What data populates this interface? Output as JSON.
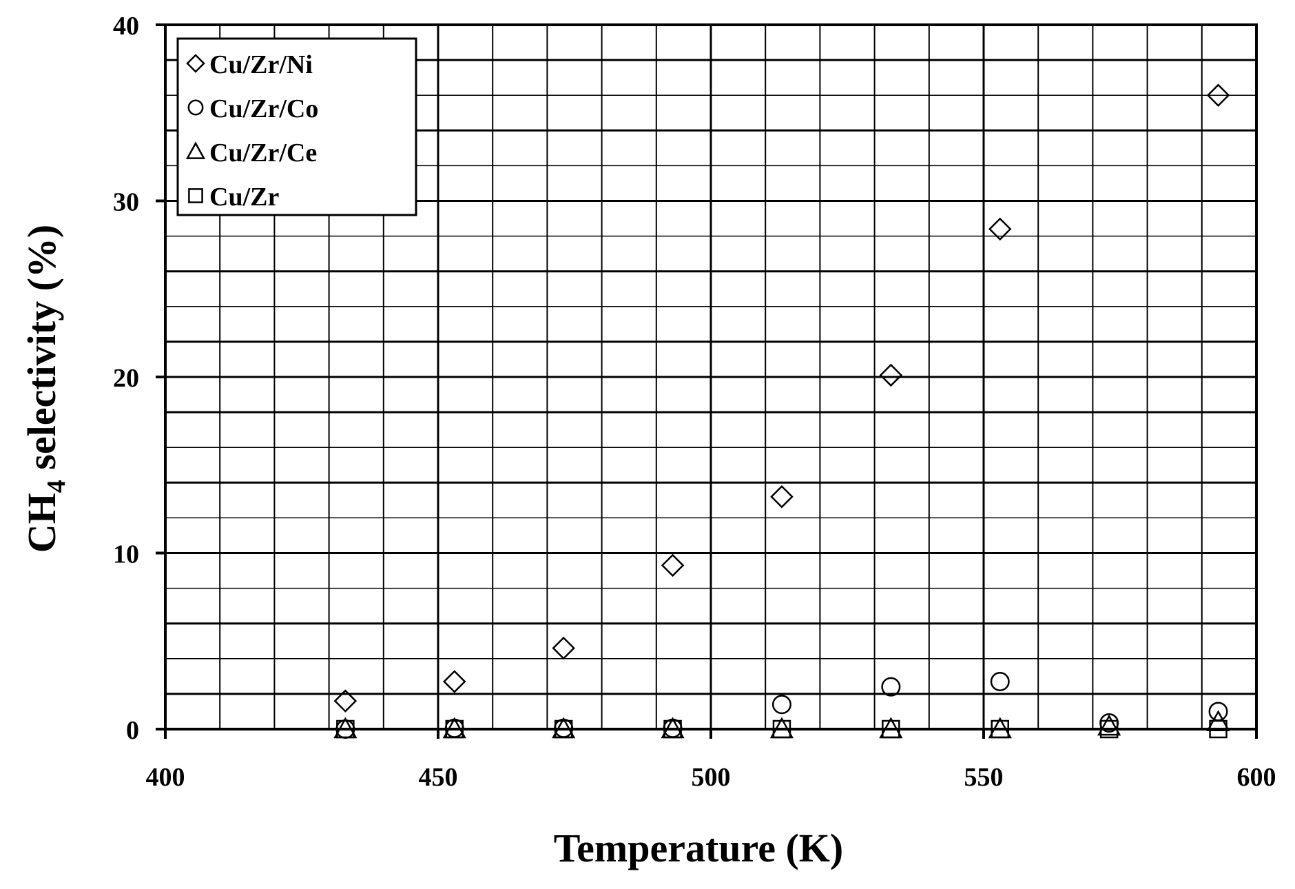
{
  "chart_data": {
    "type": "scatter",
    "xlabel": "Temperature (K)",
    "ylabel_main": "CH",
    "ylabel_sub": "4",
    "ylabel_rest": " selectivity (%)",
    "xlim": [
      400,
      600
    ],
    "ylim": [
      0,
      40
    ],
    "x_ticks": [
      400,
      450,
      500,
      550,
      600
    ],
    "y_ticks": [
      0,
      10,
      20,
      30,
      40
    ],
    "grid": true,
    "grid_x_step": 10,
    "grid_y_step": 2,
    "legend_position": "top-left",
    "series": [
      {
        "name": "Cu/Zr/Ni",
        "marker": "diamond",
        "points": [
          [
            433,
            1.6
          ],
          [
            453,
            2.7
          ],
          [
            473,
            4.6
          ],
          [
            493,
            9.3
          ],
          [
            513,
            13.2
          ],
          [
            533,
            20.1
          ],
          [
            553,
            28.4
          ],
          [
            593,
            36.0
          ]
        ]
      },
      {
        "name": "Cu/Zr/Co",
        "marker": "circle",
        "points": [
          [
            433,
            0.0
          ],
          [
            453,
            0.05
          ],
          [
            473,
            0.05
          ],
          [
            493,
            0.05
          ],
          [
            513,
            1.4
          ],
          [
            533,
            2.4
          ],
          [
            553,
            2.7
          ],
          [
            573,
            0.35
          ],
          [
            593,
            1.0
          ]
        ]
      },
      {
        "name": "Cu/Zr/Ce",
        "marker": "triangle",
        "points": [
          [
            433,
            0.0
          ],
          [
            453,
            0.0
          ],
          [
            473,
            0.0
          ],
          [
            493,
            0.0
          ],
          [
            513,
            0.0
          ],
          [
            533,
            0.0
          ],
          [
            553,
            0.0
          ],
          [
            573,
            0.15
          ],
          [
            593,
            0.4
          ]
        ]
      },
      {
        "name": "Cu/Zr",
        "marker": "square",
        "points": [
          [
            433,
            0.0
          ],
          [
            453,
            0.0
          ],
          [
            473,
            0.0
          ],
          [
            493,
            0.0
          ],
          [
            513,
            0.0
          ],
          [
            533,
            0.0
          ],
          [
            553,
            0.0
          ],
          [
            573,
            0.0
          ],
          [
            593,
            0.0
          ]
        ]
      }
    ]
  }
}
